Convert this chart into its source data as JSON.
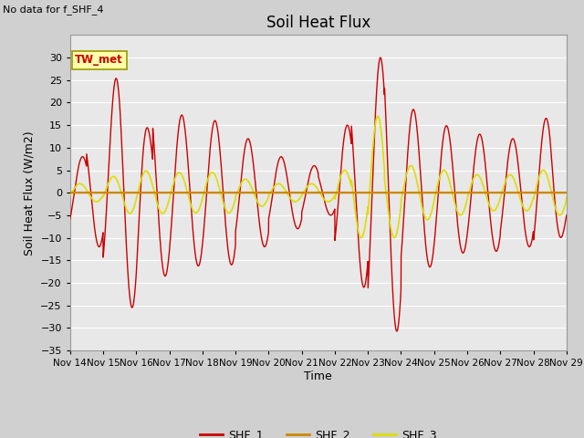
{
  "title": "Soil Heat Flux",
  "ylabel": "Soil Heat Flux (W/m2)",
  "xlabel": "Time",
  "note": "No data for f_SHF_4",
  "tw_label": "TW_met",
  "ylim": [
    -35,
    35
  ],
  "yticks": [
    -35,
    -30,
    -25,
    -20,
    -15,
    -10,
    -5,
    0,
    5,
    10,
    15,
    20,
    25,
    30
  ],
  "fig_bg": "#d0d0d0",
  "plot_bg": "#e8e8e8",
  "grid_color": "#ffffff",
  "shf1_color": "#cc0000",
  "shf2_color": "#cc8800",
  "shf3_color": "#dddd00",
  "xtick_labels": [
    "Nov 14",
    "Nov 15",
    "Nov 16",
    "Nov 17",
    "Nov 18",
    "Nov 19",
    "Nov 20",
    "Nov 21",
    "Nov 22",
    "Nov 23",
    "Nov 24",
    "Nov 25",
    "Nov 26",
    "Nov 27",
    "Nov 28",
    "Nov 29"
  ]
}
